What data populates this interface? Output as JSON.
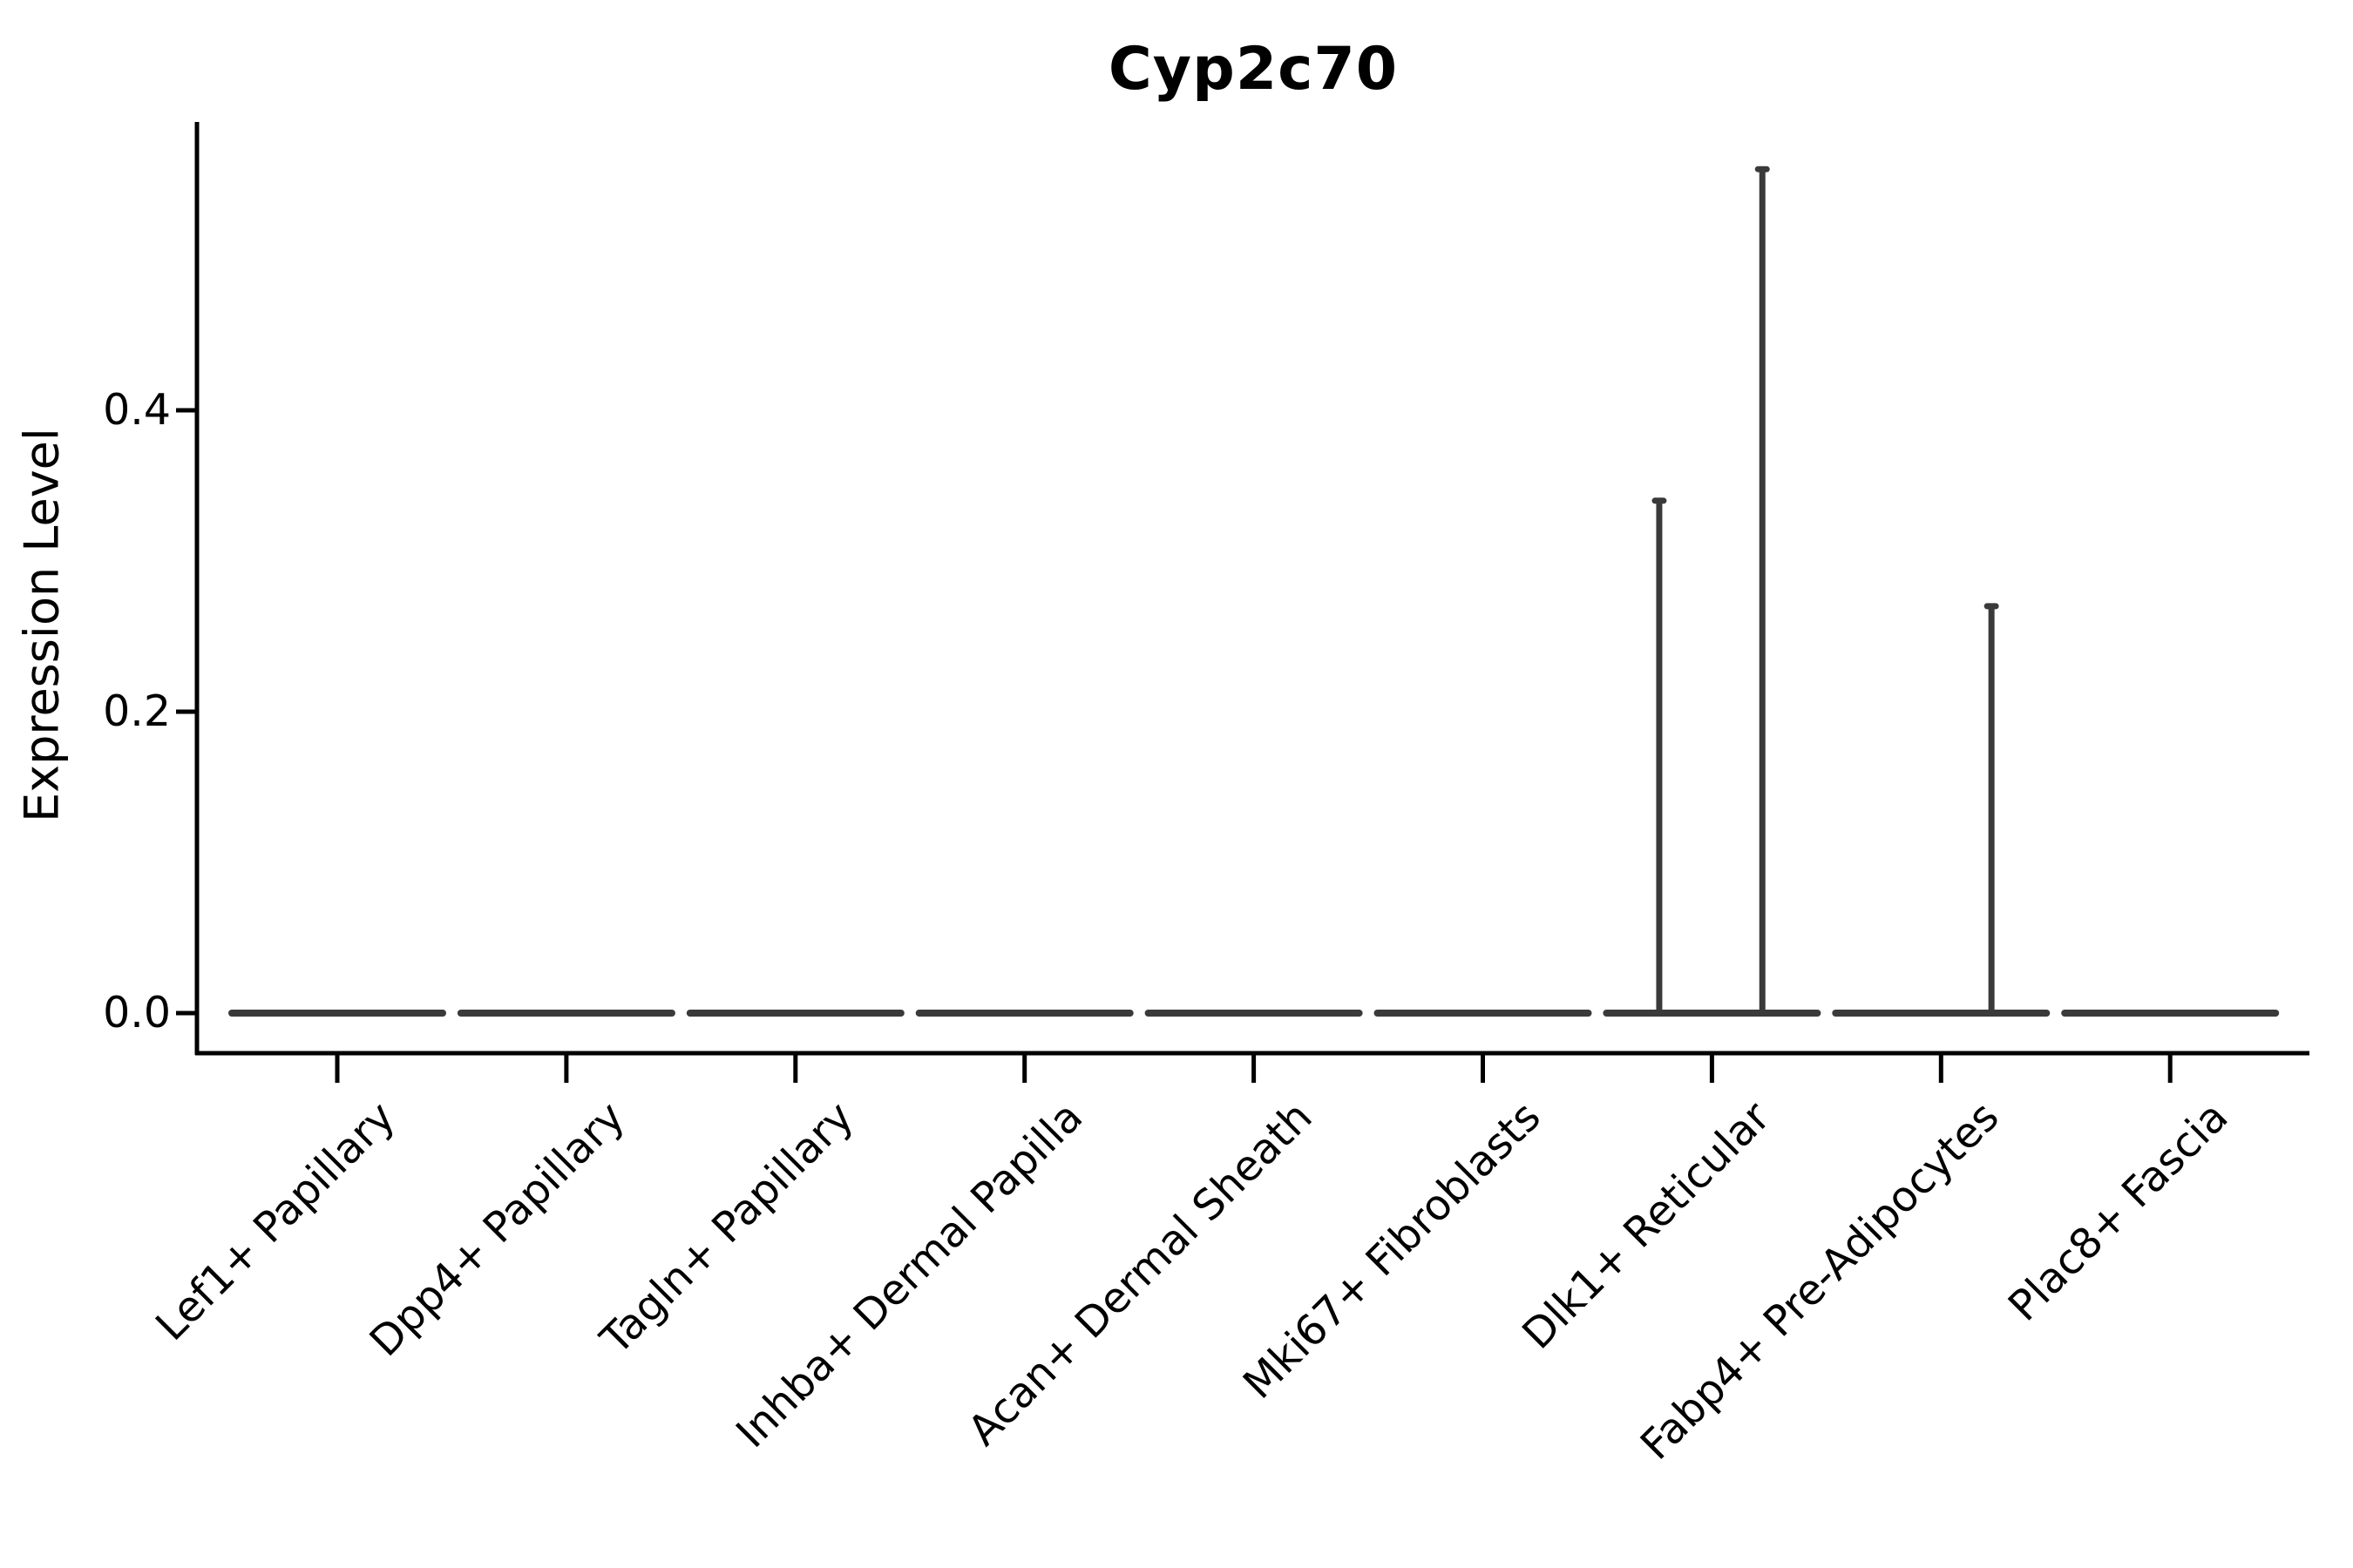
{
  "colors": {
    "background": "#ffffff",
    "axis": "#000000",
    "text": "#000000",
    "violin": "#3a3a3a"
  },
  "chart_data": {
    "type": "violin",
    "title": "Cyp2c70",
    "ylabel": "Expression Level",
    "xlabel": "",
    "grid": false,
    "legend": "none",
    "categories": [
      "Lef1+ Papillary",
      "Dpp4+ Papillary",
      "Tagln+ Papillary",
      "Inhba+ Dermal Papilla",
      "Acan+ Dermal Sheath",
      "Mki67+ Fibroblasts",
      "Dlk1+ Reticular",
      "Fabp4+ Pre-Adipocytes",
      "Plac8+ Fascia"
    ],
    "ytick_labels": [
      "0.0",
      "0.2",
      "0.4"
    ],
    "ytick_values": [
      0.0,
      0.2,
      0.4
    ],
    "ylim": [
      -0.027,
      0.591
    ],
    "violins": [
      {
        "category": "Lef1+ Papillary",
        "body": "flat-at-zero",
        "max_value": 0.0
      },
      {
        "category": "Dpp4+ Papillary",
        "body": "flat-at-zero",
        "max_value": 0.0
      },
      {
        "category": "Tagln+ Papillary",
        "body": "flat-at-zero",
        "max_value": 0.0
      },
      {
        "category": "Inhba+ Dermal Papilla",
        "body": "flat-at-zero",
        "max_value": 0.0
      },
      {
        "category": "Acan+ Dermal Sheath",
        "body": "flat-at-zero",
        "max_value": 0.0
      },
      {
        "category": "Mki67+ Fibroblasts",
        "body": "flat-at-zero",
        "max_value": 0.0
      },
      {
        "category": "Dlk1+ Reticular",
        "body": "flat-at-zero",
        "max_value": 0.56
      },
      {
        "category": "Fabp4+ Pre-Adipocytes",
        "body": "flat-at-zero",
        "max_value": 0.27
      },
      {
        "category": "Plac8+ Fascia",
        "body": "flat-at-zero",
        "max_value": 0.0
      }
    ],
    "spikes": [
      {
        "category": "Dlk1+ Reticular",
        "category_index": 6,
        "offset_frac": -0.23,
        "value": 0.34
      },
      {
        "category": "Dlk1+ Reticular",
        "category_index": 6,
        "offset_frac": 0.22,
        "value": 0.56
      },
      {
        "category": "Fabp4+ Pre-Adipocytes",
        "category_index": 7,
        "offset_frac": 0.22,
        "value": 0.27
      }
    ]
  }
}
